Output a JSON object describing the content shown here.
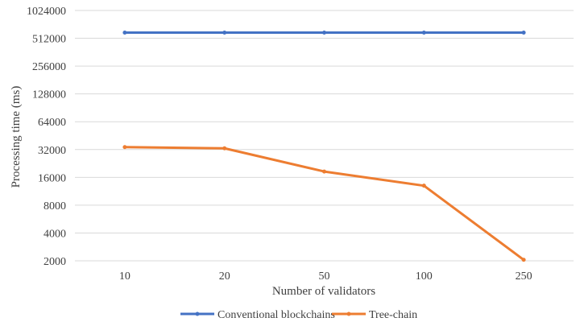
{
  "chart_data": {
    "type": "line",
    "title": "",
    "xlabel": "Number of validators",
    "ylabel": "Processing time (ms)",
    "y_scale": "log2",
    "ylim": [
      2000,
      1024000
    ],
    "yticks": [
      2000,
      4000,
      8000,
      16000,
      32000,
      64000,
      128000,
      256000,
      512000,
      1024000
    ],
    "ytick_labels": [
      "2000",
      "4000",
      "8000",
      "16000",
      "32000",
      "64000",
      "128000",
      "256000",
      "512000",
      "1024000"
    ],
    "categories": [
      "10",
      "20",
      "50",
      "100",
      "250"
    ],
    "grid": "horizontal",
    "legend_position": "bottom",
    "series": [
      {
        "name": "Conventional blockchains",
        "color": "#4472C4",
        "values": [
          590000,
          590000,
          590000,
          590000,
          590000
        ]
      },
      {
        "name": "Tree-chain",
        "color": "#ED7D31",
        "values": [
          34000,
          33000,
          18500,
          13000,
          2050
        ]
      }
    ]
  }
}
